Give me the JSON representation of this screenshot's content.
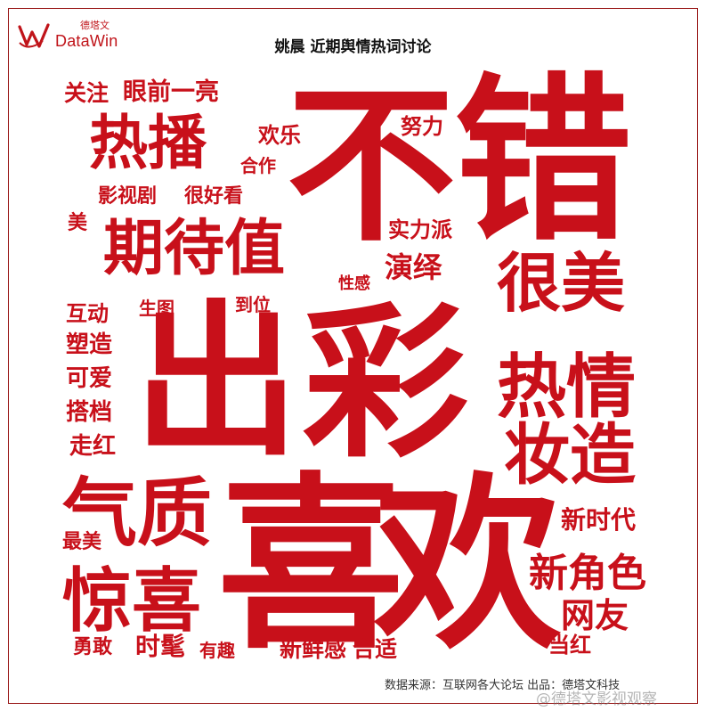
{
  "logo": {
    "cn": "德塔文",
    "en": "DataWin"
  },
  "title": "姚晨 近期舆情热词讨论",
  "words": [
    "关注",
    "眼前一亮",
    "热播",
    "欢乐",
    "努力",
    "不",
    "错",
    "合作",
    "影视剧",
    "很好看",
    "美",
    "期待值",
    "实力派",
    "演绎",
    "性感",
    "很美",
    "互动",
    "生图",
    "到位",
    "出",
    "彩",
    "塑造",
    "可爱",
    "热情",
    "搭档",
    "走红",
    "妆造",
    "气质",
    "喜",
    "欢",
    "新时代",
    "最美",
    "新角色",
    "惊喜",
    "网友",
    "勇敢",
    "时髦",
    "有趣",
    "新鲜感",
    "合适",
    "当红"
  ],
  "footer": {
    "source": "数据来源：互联网各大论坛   出品：德塔文科技",
    "watermark": "@德塔文影视观察"
  },
  "colors": {
    "word": "#c8101a",
    "border": "#9a1a1a"
  }
}
